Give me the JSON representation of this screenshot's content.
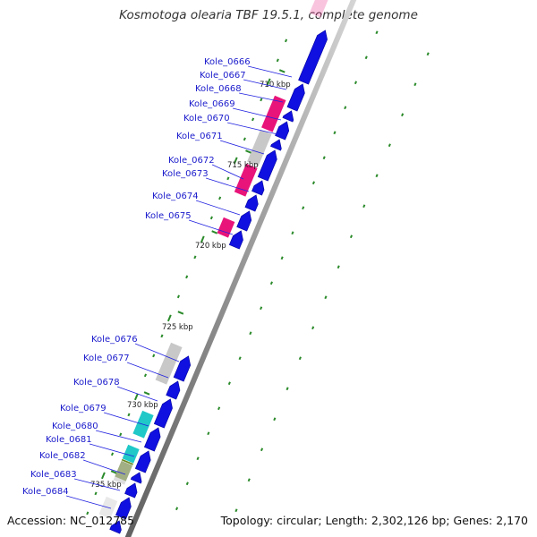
{
  "title": "Kosmotoga olearia TBF 19.5.1, complete genome",
  "footer": {
    "accession": "Accession: NC_012785",
    "topology": "Topology: circular; Length: 2,302,126 bp; Genes: 2,170"
  },
  "scale_labels": [
    "710 kbp",
    "715 kbp",
    "720 kbp",
    "725 kbp",
    "730 kbp",
    "735 kbp"
  ],
  "gene_labels": [
    "Kole_0666",
    "Kole_0667",
    "Kole_0668",
    "Kole_0669",
    "Kole_0670",
    "Kole_0671",
    "Kole_0672",
    "Kole_0673",
    "Kole_0674",
    "Kole_0675",
    "Kole_0676",
    "Kole_0677",
    "Kole_0678",
    "Kole_0679",
    "Kole_0680",
    "Kole_0681",
    "Kole_0682",
    "Kole_0683",
    "Kole_0684"
  ],
  "colors": {
    "cds": "#1010e0",
    "cog_pink": "#e8147a",
    "cog_gray": "#c8c8c8",
    "cog_cyan": "#20c8c8",
    "cog_olive": "#6a8a20",
    "label_text": "#1a1acc",
    "gc_marks": "#2a8a2a",
    "backbone": "#8c8c8c"
  }
}
